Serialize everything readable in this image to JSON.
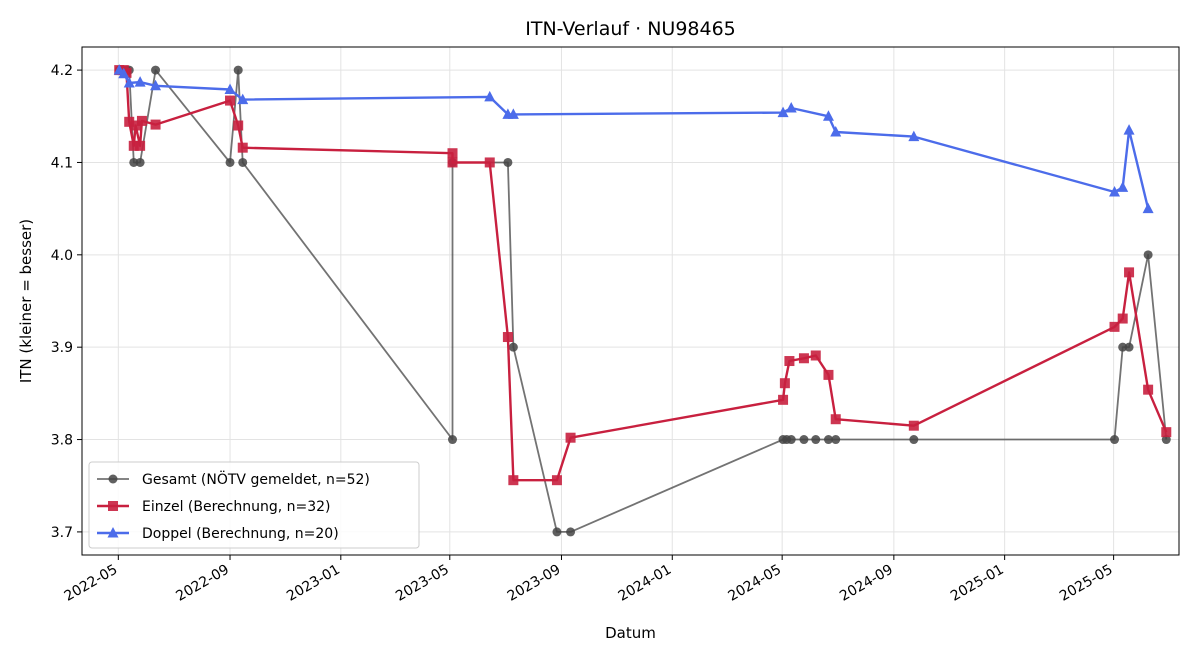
{
  "chart_data": {
    "type": "line",
    "title": "ITN-Verlauf · NU98465",
    "xlabel": "Datum",
    "ylabel": "ITN  (kleiner = besser)",
    "grid": true,
    "legend_position": "bottom-left",
    "xlim": [
      "2022-03-22",
      "2025-07-12"
    ],
    "ylim": [
      3.675,
      4.225
    ],
    "x_ticks": [
      "2022-05",
      "2022-09",
      "2023-01",
      "2023-05",
      "2023-09",
      "2024-01",
      "2024-05",
      "2024-09",
      "2025-01",
      "2025-05"
    ],
    "y_ticks": [
      "3.7",
      "3.8",
      "3.9",
      "4.0",
      "4.1",
      "4.2"
    ],
    "series": [
      {
        "name": "Gesamt (NÖTV gemeldet, n=52)",
        "color": "#444444",
        "marker": "circle",
        "points": [
          [
            "2022-05-02",
            4.2
          ],
          [
            "2022-05-05",
            4.2
          ],
          [
            "2022-05-10",
            4.2
          ],
          [
            "2022-05-13",
            4.2
          ],
          [
            "2022-05-18",
            4.1
          ],
          [
            "2022-05-25",
            4.1
          ],
          [
            "2022-06-11",
            4.2
          ],
          [
            "2022-09-01",
            4.1
          ],
          [
            "2022-09-10",
            4.2
          ],
          [
            "2022-09-15",
            4.1
          ],
          [
            "2023-05-04",
            3.8
          ],
          [
            "2023-05-04",
            4.1
          ],
          [
            "2023-07-04",
            4.1
          ],
          [
            "2023-07-10",
            3.9
          ],
          [
            "2023-08-27",
            3.7
          ],
          [
            "2023-09-11",
            3.7
          ],
          [
            "2024-05-02",
            3.8
          ],
          [
            "2024-05-06",
            3.8
          ],
          [
            "2024-05-11",
            3.8
          ],
          [
            "2024-05-25",
            3.8
          ],
          [
            "2024-06-07",
            3.8
          ],
          [
            "2024-06-21",
            3.8
          ],
          [
            "2024-06-29",
            3.8
          ],
          [
            "2024-09-23",
            3.8
          ],
          [
            "2025-05-02",
            3.8
          ],
          [
            "2025-05-11",
            3.9
          ],
          [
            "2025-05-18",
            3.9
          ],
          [
            "2025-06-08",
            4.0
          ],
          [
            "2025-06-28",
            3.8
          ]
        ]
      },
      {
        "name": "Einzel (Berechnung, n=32)",
        "color": "#C8203F",
        "marker": "square",
        "points": [
          [
            "2022-05-02",
            4.2
          ],
          [
            "2022-05-07",
            4.2
          ],
          [
            "2022-05-10",
            4.197
          ],
          [
            "2022-05-13",
            4.144
          ],
          [
            "2022-05-18",
            4.118
          ],
          [
            "2022-05-20",
            4.14
          ],
          [
            "2022-05-25",
            4.118
          ],
          [
            "2022-05-27",
            4.145
          ],
          [
            "2022-06-11",
            4.141
          ],
          [
            "2022-09-01",
            4.167
          ],
          [
            "2022-09-10",
            4.14
          ],
          [
            "2022-09-15",
            4.116
          ],
          [
            "2023-05-04",
            4.11
          ],
          [
            "2023-05-04",
            4.1
          ],
          [
            "2023-06-14",
            4.1
          ],
          [
            "2023-07-04",
            3.911
          ],
          [
            "2023-07-10",
            3.756
          ],
          [
            "2023-08-27",
            3.756
          ],
          [
            "2023-09-11",
            3.802
          ],
          [
            "2024-05-02",
            3.843
          ],
          [
            "2024-05-04",
            3.861
          ],
          [
            "2024-05-09",
            3.885
          ],
          [
            "2024-05-25",
            3.888
          ],
          [
            "2024-06-07",
            3.891
          ],
          [
            "2024-06-21",
            3.87
          ],
          [
            "2024-06-29",
            3.822
          ],
          [
            "2024-09-23",
            3.815
          ],
          [
            "2025-05-02",
            3.922
          ],
          [
            "2025-05-11",
            3.931
          ],
          [
            "2025-05-18",
            3.981
          ],
          [
            "2025-06-08",
            3.854
          ],
          [
            "2025-06-28",
            3.808
          ]
        ]
      },
      {
        "name": "Doppel (Berechnung, n=20)",
        "color": "#4C6CEA",
        "marker": "triangle",
        "points": [
          [
            "2022-05-02",
            4.2
          ],
          [
            "2022-05-07",
            4.196
          ],
          [
            "2022-05-13",
            4.186
          ],
          [
            "2022-05-25",
            4.187
          ],
          [
            "2022-06-11",
            4.183
          ],
          [
            "2022-09-01",
            4.179
          ],
          [
            "2022-09-15",
            4.168
          ],
          [
            "2023-06-14",
            4.171
          ],
          [
            "2023-07-04",
            4.152
          ],
          [
            "2023-07-10",
            4.152
          ],
          [
            "2024-05-02",
            4.154
          ],
          [
            "2024-05-11",
            4.159
          ],
          [
            "2024-06-21",
            4.15
          ],
          [
            "2024-06-29",
            4.133
          ],
          [
            "2024-09-23",
            4.128
          ],
          [
            "2025-05-02",
            4.068
          ],
          [
            "2025-05-11",
            4.073
          ],
          [
            "2025-05-18",
            4.135
          ],
          [
            "2025-06-08",
            4.05
          ]
        ]
      }
    ]
  }
}
